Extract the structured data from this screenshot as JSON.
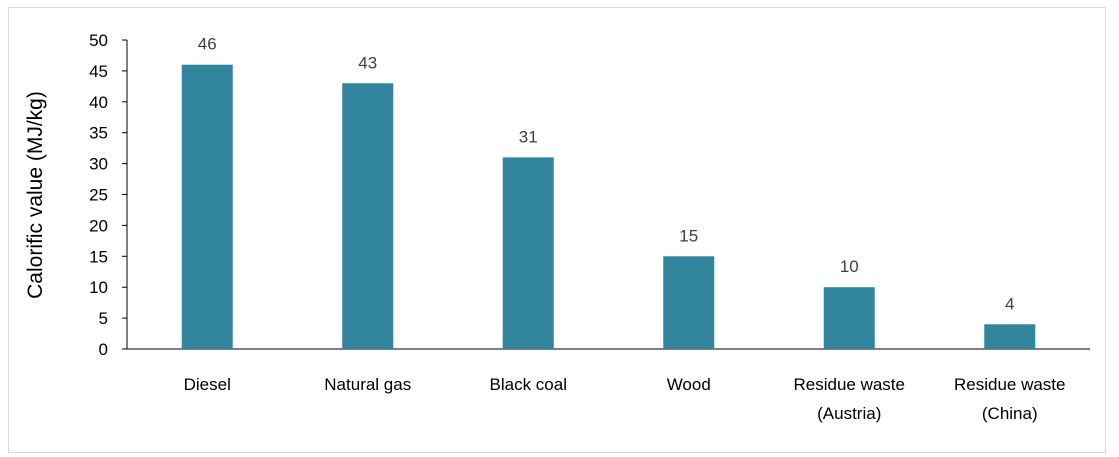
{
  "chart_data": {
    "type": "bar",
    "categories": [
      [
        "Diesel"
      ],
      [
        "Natural gas"
      ],
      [
        "Black coal"
      ],
      [
        "Wood"
      ],
      [
        "Residue waste",
        "(Austria)"
      ],
      [
        "Residue waste",
        "(China)"
      ]
    ],
    "values": [
      46,
      43,
      31,
      15,
      10,
      4
    ],
    "data_labels": [
      "46",
      "43",
      "31",
      "15",
      "10",
      "4"
    ],
    "title": "",
    "xlabel": "",
    "ylabel": "Calorific value (MJ/kg)",
    "ylim": [
      0,
      50
    ],
    "yticks": [
      0,
      5,
      10,
      15,
      20,
      25,
      30,
      35,
      40,
      45,
      50
    ],
    "grid": false,
    "legend": "none",
    "bar_color": "#31859c",
    "axis_color": "#000000"
  }
}
